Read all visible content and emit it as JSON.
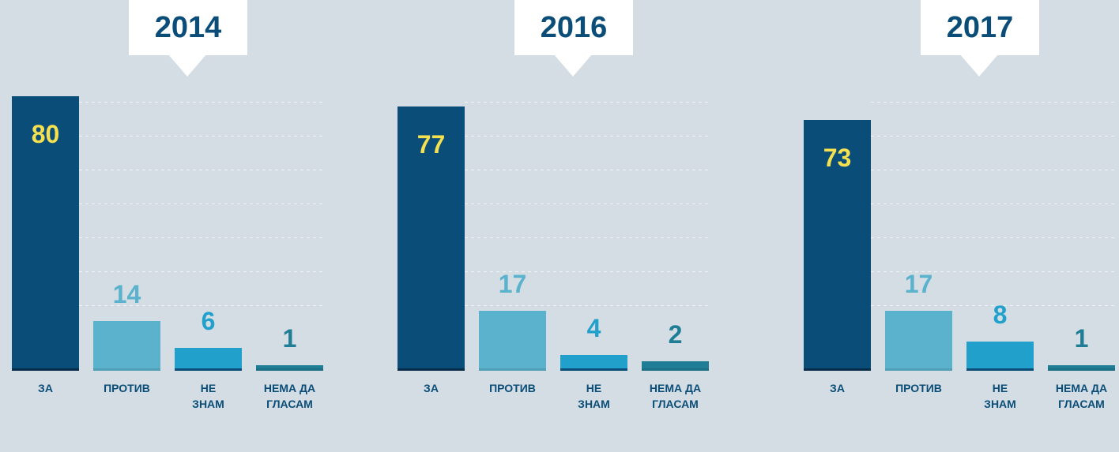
{
  "chart_data": [
    {
      "type": "bar",
      "title": "2014",
      "categories": [
        "ЗА",
        "ПРОТИВ",
        "НЕ ЗНАМ",
        "НЕМА ДА ГЛАСАМ"
      ],
      "values": [
        80,
        14,
        6,
        1
      ],
      "colors": [
        "#0a4d78",
        "#5ab2cc",
        "#22a0cc",
        "#1f7d96"
      ],
      "ylim": [
        0,
        80
      ]
    },
    {
      "type": "bar",
      "title": "2016",
      "categories": [
        "ЗА",
        "ПРОТИВ",
        "НЕ ЗНАМ",
        "НЕМА ДА ГЛАСАМ"
      ],
      "values": [
        77,
        17,
        4,
        2
      ],
      "colors": [
        "#0a4d78",
        "#5ab2cc",
        "#22a0cc",
        "#1f7d96"
      ],
      "ylim": [
        0,
        80
      ]
    },
    {
      "type": "bar",
      "title": "2017",
      "categories": [
        "ЗА",
        "ПРОТИВ",
        "НЕ ЗНАМ",
        "НЕМА ДА ГЛАСАМ"
      ],
      "values": [
        73,
        17,
        8,
        1
      ],
      "colors": [
        "#0a4d78",
        "#5ab2cc",
        "#22a0cc",
        "#1f7d96"
      ],
      "ylim": [
        0,
        80
      ]
    }
  ]
}
